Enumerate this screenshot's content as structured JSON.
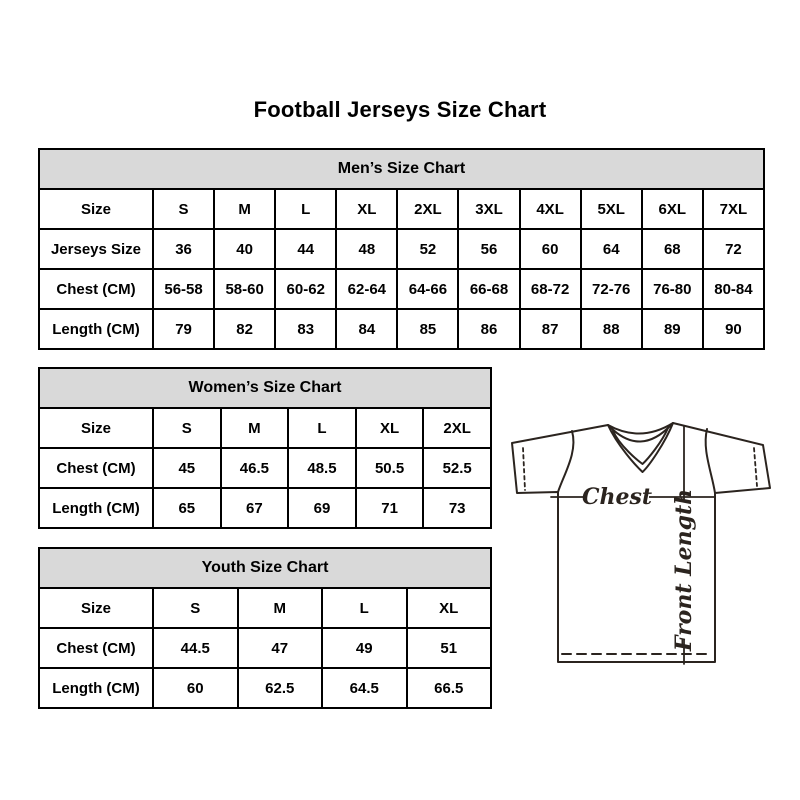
{
  "title": "Football Jerseys Size Chart",
  "colors": {
    "background": "#ffffff",
    "text": "#000000",
    "table_border": "#000000",
    "table_header_bg": "#d9d9d9",
    "diagram_line": "#2b241f"
  },
  "chart_data": [
    {
      "type": "table",
      "title": "Men’s Size Chart",
      "columns": [
        "Size",
        "S",
        "M",
        "L",
        "XL",
        "2XL",
        "3XL",
        "4XL",
        "5XL",
        "6XL",
        "7XL"
      ],
      "rows": [
        [
          "Jerseys Size",
          "36",
          "40",
          "44",
          "48",
          "52",
          "56",
          "60",
          "64",
          "68",
          "72"
        ],
        [
          "Chest (CM)",
          "56-58",
          "58-60",
          "60-62",
          "62-64",
          "64-66",
          "66-68",
          "68-72",
          "72-76",
          "76-80",
          "80-84"
        ],
        [
          "Length (CM)",
          "79",
          "82",
          "83",
          "84",
          "85",
          "86",
          "87",
          "88",
          "89",
          "90"
        ]
      ]
    },
    {
      "type": "table",
      "title": "Women’s Size Chart",
      "columns": [
        "Size",
        "S",
        "M",
        "L",
        "XL",
        "2XL"
      ],
      "rows": [
        [
          "Chest (CM)",
          "45",
          "46.5",
          "48.5",
          "50.5",
          "52.5"
        ],
        [
          "Length (CM)",
          "65",
          "67",
          "69",
          "71",
          "73"
        ]
      ]
    },
    {
      "type": "table",
      "title": "Youth Size Chart",
      "columns": [
        "Size",
        "S",
        "M",
        "L",
        "XL"
      ],
      "rows": [
        [
          "Chest (CM)",
          "44.5",
          "47",
          "49",
          "51"
        ],
        [
          "Length (CM)",
          "60",
          "62.5",
          "64.5",
          "66.5"
        ]
      ]
    }
  ],
  "diagram": {
    "chest_label": "Chest",
    "front_length_label": "Front Length"
  }
}
